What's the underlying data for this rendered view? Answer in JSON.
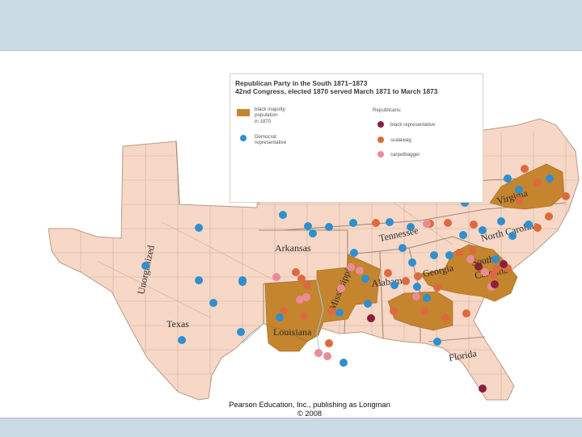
{
  "colors": {
    "black_majority": "#c4852e",
    "land": "#f7d8c6",
    "county_lines": "#c9b2a3",
    "democrat": "#2f8fcf",
    "black_representative": "#8c1f3c",
    "scalawag": "#dd6a3e",
    "carpetbagger": "#e98c98",
    "frame": "#cbdbe5"
  },
  "legend": {
    "title_line1": "Republican Party in the South 1871–1873",
    "title_line2": "42nd Congress, elected 1870 served March 1871 to March 1873",
    "black_majority": [
      "black majority",
      "population",
      "in 1870"
    ],
    "democrat": [
      "Democrat",
      "representative"
    ],
    "republicans_heading": "Republicans:",
    "black_representative": "black representative",
    "scalawag": "scalawag",
    "carpetbagger": "carpetbagger"
  },
  "map": {
    "state_labels": {
      "unorganized": "Unorganized",
      "texas": "Texas",
      "arkansas": "Arkansas",
      "louisiana": "Louisiana",
      "mississippi": "Mississippi",
      "alabama": "Alabama",
      "georgia": "Georgia",
      "tennessee": "Tennessee",
      "florida": "Florida",
      "south_carolina_1": "South",
      "south_carolina_2": "Carolina",
      "north_carolina": "North Carolina",
      "virginia": "Virginia"
    },
    "representatives": {
      "democrat": 40,
      "scalawag": 30,
      "carpetbagger": 13,
      "black_representative": 6
    }
  },
  "credit": {
    "line1": "Pearson Education, Inc., publishing as Longman",
    "line2": "© 2008"
  }
}
